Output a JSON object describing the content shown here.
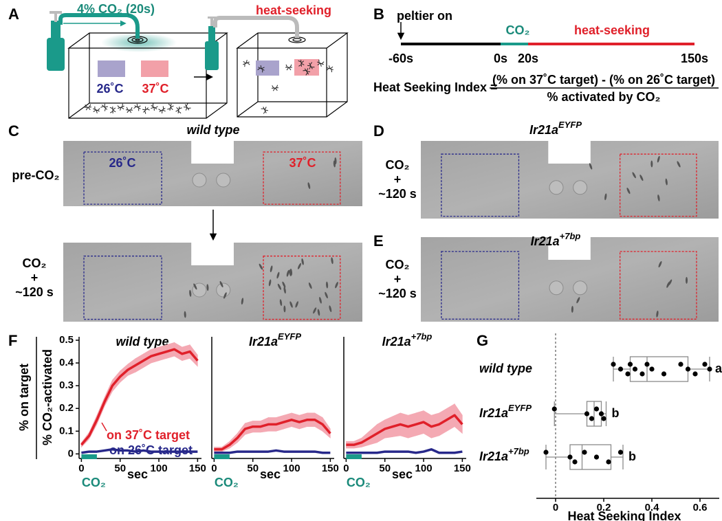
{
  "panel_labels": [
    "A",
    "B",
    "C",
    "D",
    "E",
    "F",
    "G"
  ],
  "panel_a": {
    "stimulus": "4% CO₂ (20s)",
    "cool": "26˚C",
    "warm": "37˚C",
    "outcome": "heat-seeking"
  },
  "panel_b": {
    "event": "peltier on",
    "stimulus": "CO₂",
    "phase": "heat-seeking",
    "times": [
      "-60s",
      "0s",
      "20s",
      "150s"
    ],
    "index_label": "Heat Seeking Index =",
    "numerator": "(% on 37˚C target) - (% on 26˚C target)",
    "denominator": "% activated by CO₂"
  },
  "panel_c": {
    "cool": "26˚C",
    "warm": "37˚C",
    "before": "pre-CO₂",
    "after": [
      "CO₂",
      "+",
      "~120 s"
    ]
  },
  "chart_data": [
    {
      "type": "line",
      "title": "wild type",
      "ylabel": [
        "% on target",
        "% CO₂-activated"
      ],
      "xlabel": "sec",
      "stimulus_label": "CO₂",
      "stimulus_window": [
        0,
        20
      ],
      "x": [
        0,
        10,
        20,
        30,
        40,
        50,
        60,
        70,
        80,
        90,
        100,
        110,
        120,
        130,
        140,
        150
      ],
      "xlim": [
        -3,
        155
      ],
      "xticks": [
        0,
        50,
        100,
        150
      ],
      "ylim": [
        -0.02,
        0.5
      ],
      "yticks": [
        0,
        0.1,
        0.2,
        0.3,
        0.4,
        0.5
      ],
      "series": [
        {
          "name": "on 37˚C target",
          "color": "#e0202a",
          "band_color": "#f4a9b3",
          "values": [
            0.04,
            0.08,
            0.15,
            0.23,
            0.3,
            0.34,
            0.37,
            0.39,
            0.41,
            0.43,
            0.44,
            0.45,
            0.46,
            0.44,
            0.45,
            0.41
          ],
          "error": [
            0.01,
            0.015,
            0.02,
            0.02,
            0.025,
            0.025,
            0.025,
            0.03,
            0.03,
            0.03,
            0.03,
            0.03,
            0.03,
            0.03,
            0.03,
            0.025
          ]
        },
        {
          "name": "on 26˚C target",
          "color": "#27288a",
          "values": [
            0.005,
            0.01,
            0.01,
            0.015,
            0.02,
            0.015,
            0.015,
            0.01,
            0.015,
            0.01,
            0.01,
            0.01,
            0.01,
            0.01,
            0.01,
            0.01
          ]
        }
      ]
    },
    {
      "type": "line",
      "title": "Ir21a",
      "title_sup": "EYFP",
      "xlabel": "sec",
      "stimulus_label": "CO₂",
      "stimulus_window": [
        0,
        20
      ],
      "x": [
        0,
        10,
        20,
        30,
        40,
        50,
        60,
        70,
        80,
        90,
        100,
        110,
        120,
        130,
        140,
        150
      ],
      "xlim": [
        -3,
        155
      ],
      "xticks": [
        0,
        50,
        100,
        150
      ],
      "ylim": [
        -0.02,
        0.5
      ],
      "series": [
        {
          "color": "#e0202a",
          "band_color": "#f4a9b3",
          "values": [
            0.02,
            0.02,
            0.04,
            0.07,
            0.11,
            0.12,
            0.12,
            0.13,
            0.13,
            0.14,
            0.15,
            0.14,
            0.15,
            0.15,
            0.13,
            0.09
          ],
          "error": [
            0.01,
            0.01,
            0.015,
            0.02,
            0.025,
            0.025,
            0.025,
            0.03,
            0.03,
            0.03,
            0.03,
            0.03,
            0.03,
            0.03,
            0.03,
            0.02
          ]
        },
        {
          "color": "#27288a",
          "values": [
            0.005,
            0.005,
            0.005,
            0.01,
            0.01,
            0.01,
            0.01,
            0.01,
            0.015,
            0.01,
            0.01,
            0.01,
            0.01,
            0.01,
            0.005,
            0.005
          ]
        }
      ]
    },
    {
      "type": "line",
      "title": "Ir21a",
      "title_sup": "+7bp",
      "xlabel": "sec",
      "stimulus_label": "CO₂",
      "stimulus_window": [
        0,
        20
      ],
      "x": [
        0,
        10,
        20,
        30,
        40,
        50,
        60,
        70,
        80,
        90,
        100,
        110,
        120,
        130,
        140,
        150
      ],
      "xlim": [
        -3,
        155
      ],
      "xticks": [
        0,
        50,
        100,
        150
      ],
      "ylim": [
        -0.02,
        0.5
      ],
      "series": [
        {
          "color": "#e0202a",
          "band_color": "#f4a9b3",
          "values": [
            0.04,
            0.04,
            0.05,
            0.07,
            0.09,
            0.11,
            0.12,
            0.13,
            0.12,
            0.13,
            0.14,
            0.12,
            0.13,
            0.15,
            0.17,
            0.13
          ],
          "error": [
            0.015,
            0.015,
            0.02,
            0.03,
            0.04,
            0.04,
            0.045,
            0.05,
            0.05,
            0.05,
            0.05,
            0.05,
            0.05,
            0.05,
            0.05,
            0.04
          ]
        },
        {
          "color": "#27288a",
          "values": [
            0.005,
            0.005,
            0.005,
            0.005,
            0.005,
            0.01,
            0.01,
            0.01,
            0.01,
            0.005,
            0.01,
            0.02,
            0.005,
            0.005,
            0.005,
            0.01
          ]
        }
      ]
    },
    {
      "type": "box",
      "categories": [
        "wild type",
        "Ir21a",
        "Ir21a"
      ],
      "category_sups": [
        null,
        "EYFP",
        "+7bp"
      ],
      "xlabel": "Heat Seeking Index",
      "xlim": [
        -0.08,
        0.68
      ],
      "xticks": [
        0,
        0.2,
        0.4,
        0.6
      ],
      "color": "#8a8a8a",
      "boxes": [
        {
          "whisker_low": 0.24,
          "q1": 0.31,
          "median": 0.38,
          "q3": 0.55,
          "whisker_high": 0.64,
          "group": "a",
          "points": [
            0.24,
            0.27,
            0.3,
            0.31,
            0.33,
            0.36,
            0.38,
            0.4,
            0.45,
            0.52,
            0.55,
            0.58,
            0.62,
            0.64
          ]
        },
        {
          "whisker_low": -0.005,
          "q1": 0.13,
          "median": 0.16,
          "q3": 0.19,
          "whisker_high": 0.21,
          "group": "b",
          "points": [
            -0.005,
            0.13,
            0.15,
            0.17,
            0.19,
            0.2
          ]
        },
        {
          "whisker_low": -0.04,
          "q1": 0.06,
          "median": 0.11,
          "q3": 0.23,
          "whisker_high": 0.28,
          "group": "b",
          "points": [
            -0.04,
            0.06,
            0.08,
            0.12,
            0.17,
            0.22,
            0.27
          ]
        }
      ]
    }
  ]
}
